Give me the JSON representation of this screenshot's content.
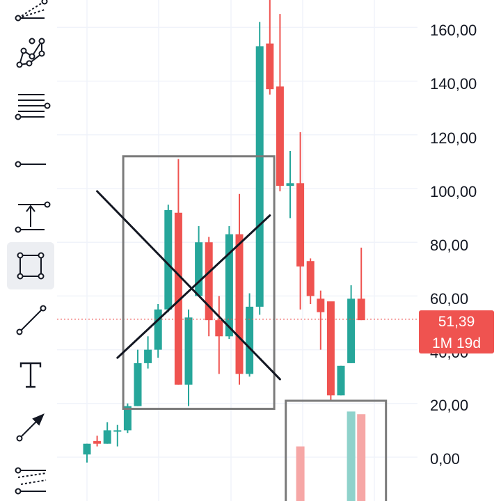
{
  "colors": {
    "up": "#26a69a",
    "down": "#ef5350",
    "up_volume": "#8fd2cb",
    "down_volume": "#f6a7a6",
    "grid": "#f0f3fa",
    "drawing_gray": "#7a7a7a",
    "drawing_black": "#131722",
    "price_line": "#ef5350"
  },
  "toolbar": {
    "items": [
      {
        "name": "fib-fan-tool",
        "icon": "fib-fan-icon",
        "active": false
      },
      {
        "name": "pattern-tool",
        "icon": "xabcd-pattern-icon",
        "active": false
      },
      {
        "name": "fib-retracement-tool",
        "icon": "fib-retracement-icon",
        "active": false
      },
      {
        "name": "horizontal-ray-tool",
        "icon": "horizontal-ray-icon",
        "active": false
      },
      {
        "name": "measure-tool",
        "icon": "price-range-icon",
        "active": false
      },
      {
        "name": "rectangle-tool",
        "icon": "rectangle-icon",
        "active": true
      },
      {
        "name": "trend-line-tool",
        "icon": "trend-line-icon",
        "active": false
      },
      {
        "name": "text-tool",
        "icon": "text-icon",
        "active": false
      },
      {
        "name": "arrow-tool",
        "icon": "arrow-icon",
        "active": false
      },
      {
        "name": "fib-channel-tool",
        "icon": "fib-channel-icon",
        "active": false
      }
    ]
  },
  "price_axis": {
    "labels": [
      "160,00",
      "140,00",
      "120,00",
      "100,00",
      "80,00",
      "60,00",
      "40,00",
      "20,00",
      "0,00"
    ]
  },
  "current_price": {
    "value": "51,39",
    "countdown": "1M 19d",
    "price": 51.39
  },
  "chart_data": {
    "type": "candlestick",
    "y_range": [
      -15,
      170
    ],
    "candles": [
      {
        "o": 1,
        "h": 5,
        "l": -2,
        "c": 5
      },
      {
        "o": 6,
        "h": 8,
        "l": 4,
        "c": 5
      },
      {
        "o": 5,
        "h": 13,
        "l": 5,
        "c": 10
      },
      {
        "o": 10,
        "h": 12,
        "l": 4,
        "c": 10
      },
      {
        "o": 10,
        "h": 20,
        "l": 9,
        "c": 19
      },
      {
        "o": 19,
        "h": 40,
        "l": 19,
        "c": 35
      },
      {
        "o": 35,
        "h": 45,
        "l": 33,
        "c": 40
      },
      {
        "o": 40,
        "h": 57,
        "l": 37,
        "c": 55
      },
      {
        "o": 55,
        "h": 94,
        "l": 54,
        "c": 92
      },
      {
        "o": 91,
        "h": 111,
        "l": 27,
        "c": 27
      },
      {
        "o": 27,
        "h": 55,
        "l": 19,
        "c": 52
      },
      {
        "o": 60,
        "h": 86,
        "l": 60,
        "c": 80
      },
      {
        "o": 80,
        "h": 82,
        "l": 45,
        "c": 51
      },
      {
        "o": 51,
        "h": 60,
        "l": 31,
        "c": 45
      },
      {
        "o": 45,
        "h": 86,
        "l": 44,
        "c": 83
      },
      {
        "o": 83,
        "h": 98,
        "l": 27,
        "c": 31
      },
      {
        "o": 31,
        "h": 61,
        "l": 30,
        "c": 56
      },
      {
        "o": 56,
        "h": 162,
        "l": 53,
        "c": 153
      },
      {
        "o": 154,
        "h": 171,
        "l": 135,
        "c": 137
      },
      {
        "o": 138,
        "h": 165,
        "l": 99,
        "c": 101
      },
      {
        "o": 101,
        "h": 114,
        "l": 89,
        "c": 102
      },
      {
        "o": 102,
        "h": 121,
        "l": 55,
        "c": 71
      },
      {
        "o": 73,
        "h": 74,
        "l": 57,
        "c": 60
      },
      {
        "o": 59,
        "h": 62,
        "l": 40,
        "c": 54
      },
      {
        "o": 58,
        "h": 57,
        "l": 21,
        "c": 23
      },
      {
        "o": 23,
        "h": 34,
        "l": 23,
        "c": 34
      },
      {
        "o": 35,
        "h": 64,
        "l": 35,
        "c": 59
      },
      {
        "o": 59,
        "h": 78,
        "l": 51,
        "c": 51
      }
    ],
    "volume_bars": [
      {
        "index": 21,
        "direction": "down",
        "top": 4
      },
      {
        "index": 26,
        "direction": "up",
        "top": 17
      },
      {
        "index": 27,
        "direction": "down",
        "top": 16
      }
    ]
  },
  "drawings": {
    "rectangles": [
      {
        "name": "rectangle-drawing-1",
        "from_index": 4,
        "to_index": 18,
        "top": 112,
        "bottom": 18
      },
      {
        "name": "rectangle-drawing-2",
        "from_index": 20,
        "to_index": 29,
        "top": 21,
        "bottom": -25
      }
    ],
    "lines": [
      {
        "name": "trend-line-down",
        "from": [
          1,
          99
        ],
        "to": [
          19,
          29
        ]
      },
      {
        "name": "trend-line-up",
        "from": [
          3,
          37
        ],
        "to": [
          18,
          90
        ]
      }
    ]
  }
}
